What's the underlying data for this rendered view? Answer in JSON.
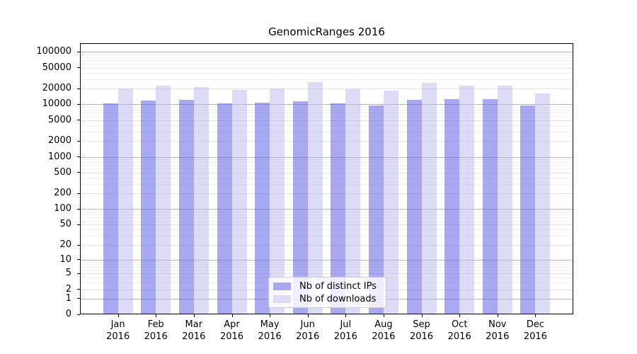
{
  "figure": {
    "title": "GenomicRanges 2016"
  },
  "chart_data": {
    "type": "bar",
    "title": "GenomicRanges 2016",
    "categories": [
      "Jan",
      "Feb",
      "Mar",
      "Apr",
      "May",
      "Jun",
      "Jul",
      "Aug",
      "Sep",
      "Oct",
      "Nov",
      "Dec"
    ],
    "category_year": "2016",
    "series": [
      {
        "name": "Nb of distinct IPs",
        "color": "#a8a8f1",
        "fill": "rgba(98,98,230,0.55)",
        "values": [
          10400,
          11800,
          12100,
          10600,
          10900,
          11600,
          10400,
          9400,
          12100,
          12600,
          12500,
          9400
        ]
      },
      {
        "name": "Nb of downloads",
        "color": "#dcdcf7",
        "fill": "rgba(178,178,237,0.45)",
        "values": [
          20000,
          23000,
          21600,
          18900,
          20300,
          26500,
          19500,
          18300,
          26000,
          22500,
          22600,
          16000
        ]
      }
    ],
    "yscale": "log1p",
    "yticks": [
      0,
      1,
      2,
      5,
      10,
      20,
      50,
      100,
      200,
      500,
      1000,
      2000,
      5000,
      10000,
      20000,
      50000,
      100000
    ],
    "ylim": [
      0,
      146000
    ],
    "grid": true,
    "legend": {
      "position": "lower center",
      "entries": [
        "Nb of distinct IPs",
        "Nb of downloads"
      ]
    }
  }
}
